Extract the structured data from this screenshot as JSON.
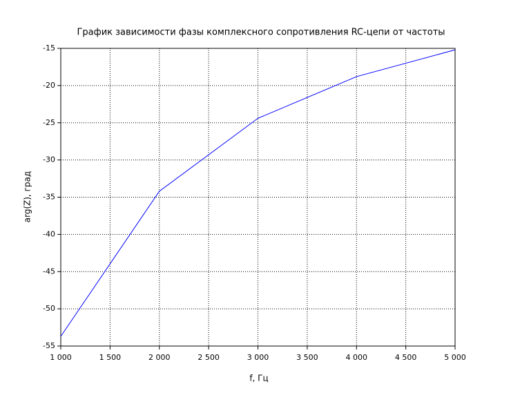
{
  "chart_data": {
    "type": "line",
    "title": "График зависимости фазы комплексного сопротивления RC-цепи от частоты",
    "x_label": "f, Гц",
    "y_label": "arg(Z), град",
    "x": [
      1000,
      2000,
      3000,
      4000,
      5000
    ],
    "series": [
      {
        "name": "arg(Z)",
        "color": "#0000ff",
        "values": [
          -53.7,
          -34.2,
          -24.4,
          -18.8,
          -15.2
        ]
      }
    ],
    "xlim": [
      1000,
      5000
    ],
    "xticks": [
      {
        "value": 1000,
        "label": "1 000"
      },
      {
        "value": 1500,
        "label": "1 500"
      },
      {
        "value": 2000,
        "label": "2 000"
      },
      {
        "value": 2500,
        "label": "2 500"
      },
      {
        "value": 3000,
        "label": "3 000"
      },
      {
        "value": 3500,
        "label": "3 500"
      },
      {
        "value": 4000,
        "label": "4 000"
      },
      {
        "value": 4500,
        "label": "4 500"
      },
      {
        "value": 5000,
        "label": "5 000"
      }
    ],
    "ylim": [
      -55,
      -15
    ],
    "yticks": [
      -55,
      -50,
      -45,
      -40,
      -35,
      -30,
      -25,
      -20,
      -15
    ],
    "grid": true
  }
}
